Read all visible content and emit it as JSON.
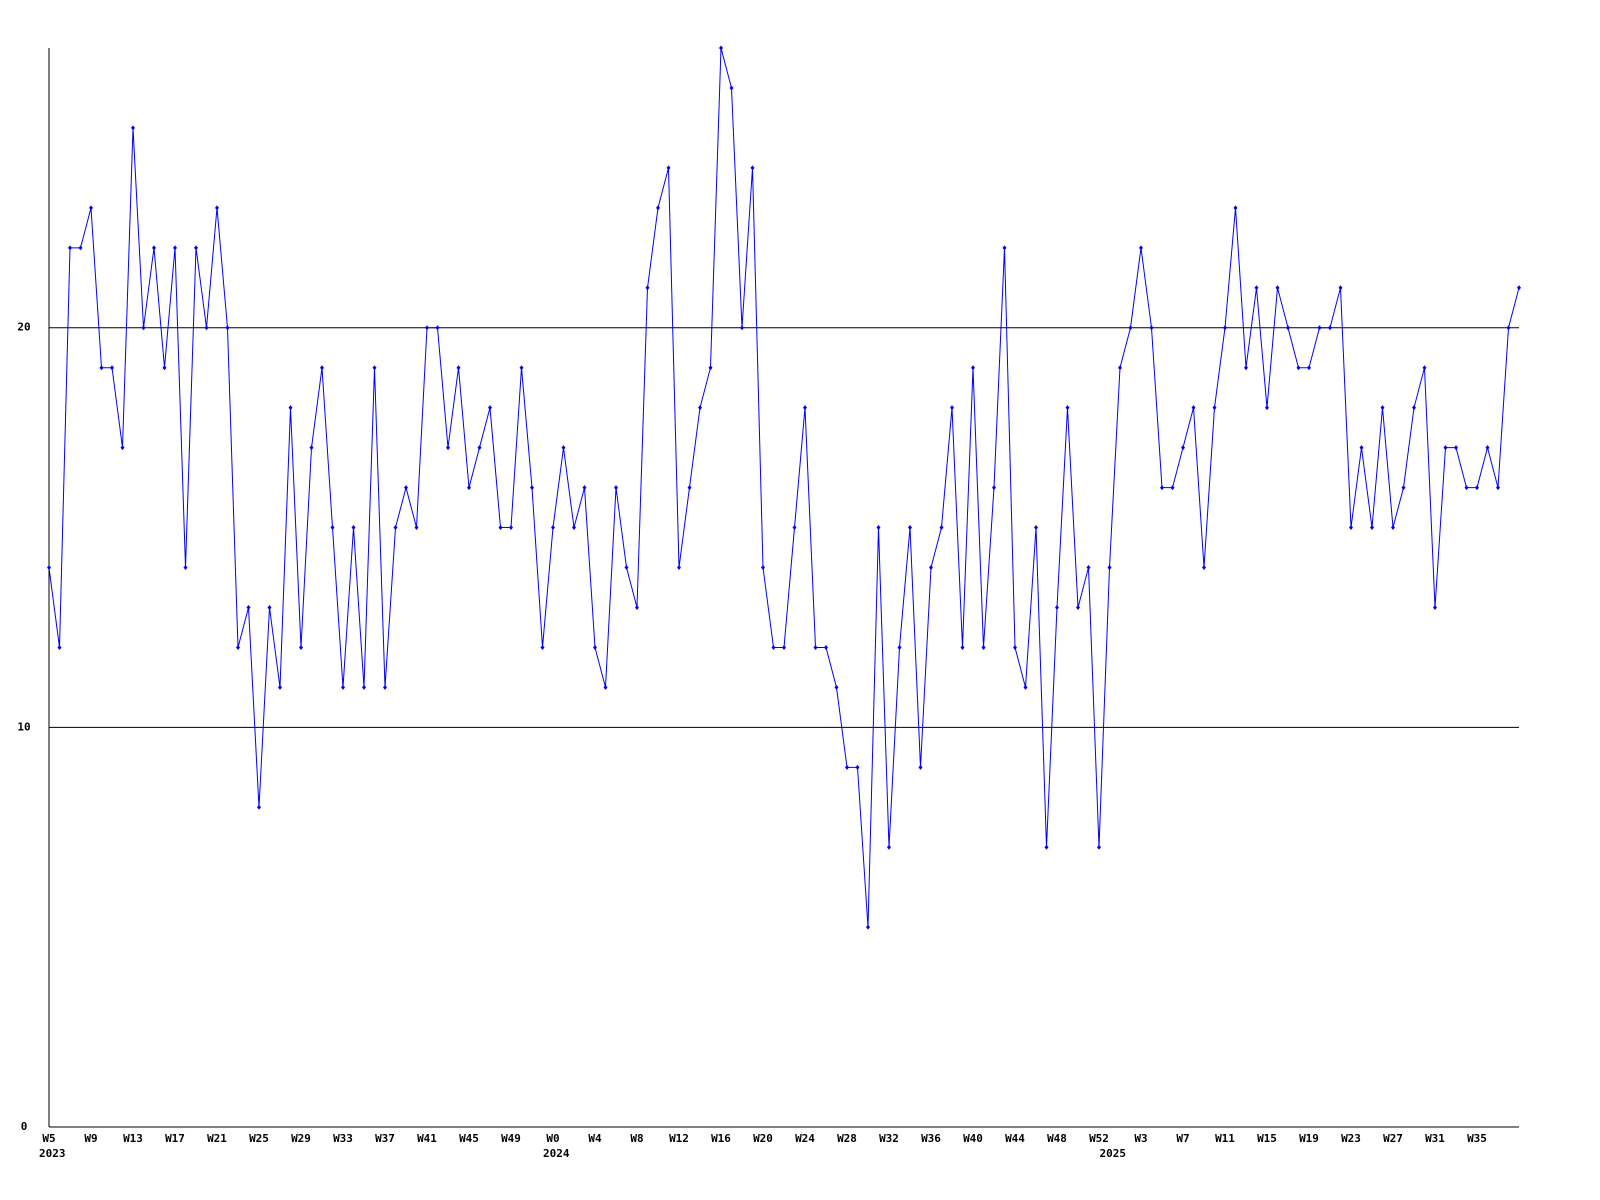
{
  "chart_data": {
    "type": "line",
    "categories": [
      "W5",
      null,
      null,
      null,
      "W9",
      null,
      null,
      null,
      "W13",
      null,
      null,
      null,
      "W17",
      null,
      null,
      null,
      "W21",
      null,
      null,
      null,
      "W25",
      null,
      null,
      null,
      "W29",
      null,
      null,
      null,
      "W33",
      null,
      null,
      null,
      "W37",
      null,
      null,
      null,
      "W41",
      null,
      null,
      null,
      "W45",
      null,
      null,
      null,
      "W49",
      null,
      null,
      null,
      "W0",
      null,
      null,
      null,
      "W4",
      null,
      null,
      null,
      "W8",
      null,
      null,
      null,
      "W12",
      null,
      null,
      null,
      "W16",
      null,
      null,
      null,
      "W20",
      null,
      null,
      null,
      "W24",
      null,
      null,
      null,
      "W28",
      null,
      null,
      null,
      "W32",
      null,
      null,
      null,
      "W36",
      null,
      null,
      null,
      "W40",
      null,
      null,
      null,
      "W44",
      null,
      null,
      null,
      "W48",
      null,
      null,
      null,
      "W52",
      null,
      null,
      null,
      "W3",
      null,
      null,
      null,
      "W7",
      null,
      null,
      null,
      "W11",
      null,
      null,
      null,
      "W15",
      null,
      null,
      null,
      "W19",
      null,
      null,
      null,
      "W23",
      null,
      null,
      null,
      "W27",
      null,
      null,
      null,
      "W31",
      null,
      null,
      null,
      "W35",
      null,
      null,
      null,
      null
    ],
    "x_groups": [
      {
        "label": "2023",
        "start": 0
      },
      {
        "label": "2024",
        "start": 48
      },
      {
        "label": "2025",
        "start": 101
      }
    ],
    "series": [
      {
        "color": "#0000ff",
        "values": [
          14,
          12,
          22,
          22,
          23,
          19,
          19,
          17,
          25,
          20,
          22,
          19,
          22,
          14,
          22,
          20,
          23,
          20,
          12,
          13,
          8,
          13,
          11,
          18,
          12,
          17,
          19,
          15,
          11,
          15,
          11,
          19,
          11,
          15,
          16,
          15,
          20,
          20,
          17,
          19,
          16,
          17,
          18,
          15,
          15,
          19,
          16,
          12,
          15,
          17,
          15,
          16,
          12,
          11,
          16,
          14,
          13,
          21,
          23,
          24,
          14,
          16,
          18,
          19,
          27,
          26,
          20,
          24,
          14,
          12,
          12,
          15,
          18,
          12,
          12,
          11,
          9,
          9,
          5,
          15,
          7,
          12,
          15,
          9,
          14,
          15,
          18,
          12,
          19,
          12,
          16,
          22,
          12,
          11,
          15,
          7,
          13,
          18,
          13,
          14,
          7,
          14,
          19,
          20,
          22,
          20,
          16,
          16,
          17,
          18,
          14,
          18,
          20,
          23,
          19,
          21,
          18,
          21,
          20,
          19,
          19,
          20,
          20,
          21,
          15,
          17,
          15,
          18,
          15,
          16,
          18,
          19,
          13,
          17,
          17,
          16,
          16,
          17,
          16,
          20,
          21
        ]
      }
    ],
    "ylim": [
      0,
      27
    ],
    "yticks": [
      0,
      10,
      20
    ],
    "grid": true
  }
}
